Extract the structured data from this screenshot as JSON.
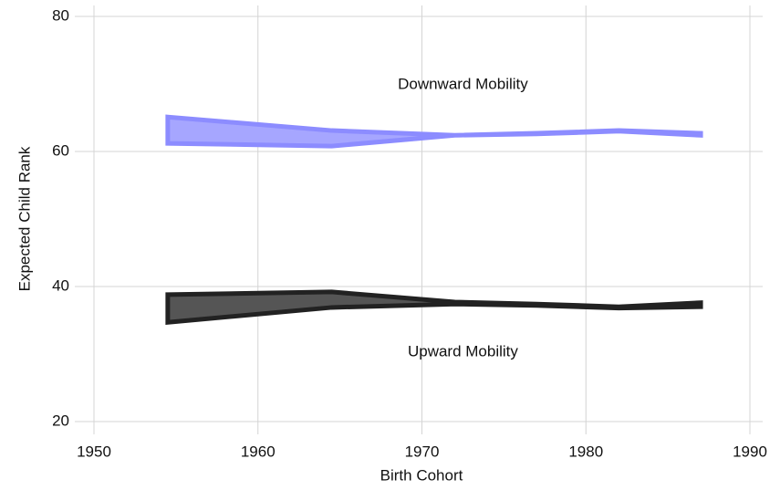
{
  "chart_data": {
    "type": "band",
    "xlabel": "Birth Cohort",
    "ylabel": "Expected Child Rank",
    "x": [
      1954.5,
      1964.5,
      1972,
      1977,
      1982,
      1987
    ],
    "series": [
      {
        "name": "Downward Mobility",
        "color": "#a6a6ff",
        "edge_color": "#8c8cff",
        "upper": [
          65.1,
          63.1,
          62.4,
          62.7,
          63.1,
          62.7
        ],
        "lower": [
          61.2,
          60.8,
          62.4,
          62.6,
          63.0,
          62.4
        ]
      },
      {
        "name": "Upward Mobility",
        "color": "#555555",
        "edge_color": "#222222",
        "upper": [
          38.8,
          39.2,
          37.7,
          37.4,
          37.0,
          37.6
        ],
        "lower": [
          34.7,
          36.9,
          37.4,
          37.2,
          36.8,
          37.0
        ]
      }
    ],
    "xlim": [
      1950,
      1990
    ],
    "xticks": [
      1950,
      1960,
      1970,
      1980,
      1990
    ],
    "ylim": [
      20,
      80
    ],
    "yticks": [
      20,
      40,
      60,
      80
    ],
    "grid": true
  }
}
